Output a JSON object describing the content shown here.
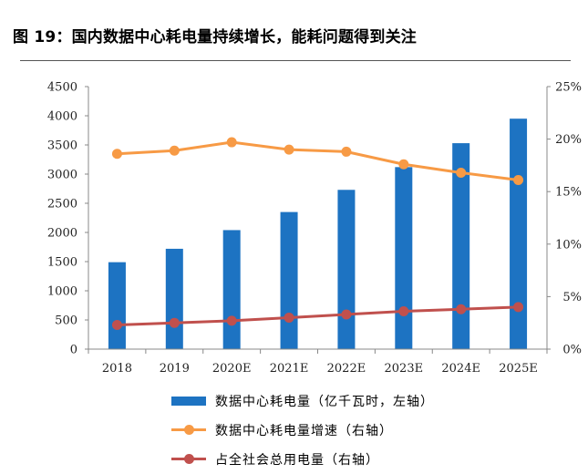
{
  "figure": {
    "title": "图 19：国内数据中心耗电量持续增长，能耗问题得到关注"
  },
  "colors": {
    "bar": "#1d73c2",
    "growth_line": "#f79a45",
    "share_line": "#c0504d",
    "axis": "#888888"
  },
  "chart_data": {
    "type": "bar",
    "categories": [
      "2018",
      "2019",
      "2020E",
      "2021E",
      "2022E",
      "2023E",
      "2024E",
      "2025E"
    ],
    "series": [
      {
        "name": "数据中心耗电量（亿千瓦时，左轴）",
        "type": "bar",
        "axis": "left",
        "values": [
          1490,
          1720,
          2040,
          2350,
          2730,
          3120,
          3530,
          3950
        ]
      },
      {
        "name": "数据中心耗电量增速（右轴）",
        "type": "line",
        "axis": "right",
        "values": [
          18.6,
          18.9,
          19.7,
          19.0,
          18.8,
          17.6,
          16.8,
          16.1
        ]
      },
      {
        "name": "占全社会总用电量（右轴）",
        "type": "line",
        "axis": "right",
        "values": [
          2.3,
          2.5,
          2.7,
          3.0,
          3.3,
          3.6,
          3.8,
          4.0
        ]
      }
    ],
    "y_left": {
      "min": 0,
      "max": 4500,
      "step": 500,
      "ticks": [
        "0",
        "500",
        "1000",
        "1500",
        "2000",
        "2500",
        "3000",
        "3500",
        "4000",
        "4500"
      ]
    },
    "y_right": {
      "min": 0,
      "max": 25,
      "step": 5,
      "ticks": [
        "0%",
        "5%",
        "10%",
        "15%",
        "20%",
        "25%"
      ]
    },
    "grid": false,
    "legend_position": "bottom"
  }
}
